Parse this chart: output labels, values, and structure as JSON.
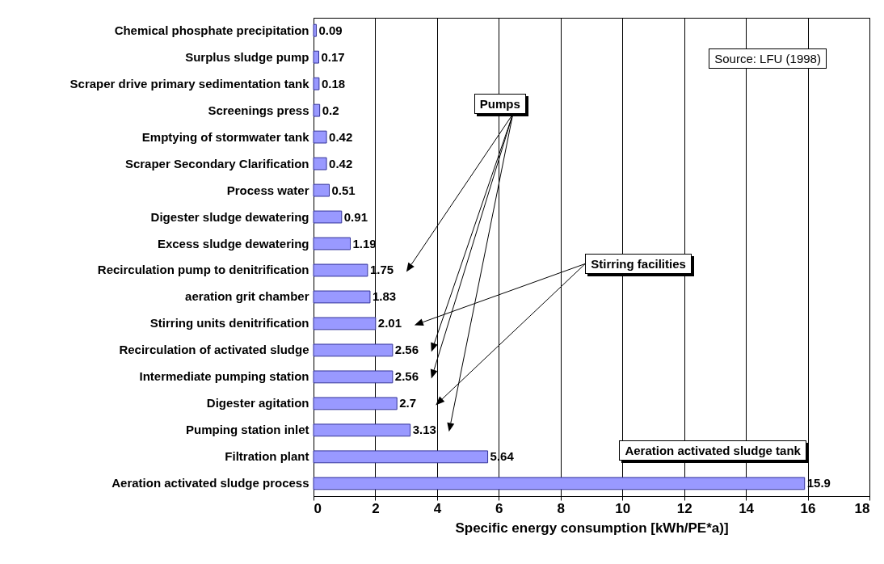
{
  "chart_data": {
    "type": "bar",
    "orientation": "horizontal",
    "xlabel": "Specific energy consumption [kWh/PE*a)]",
    "categories": [
      "Chemical phosphate precipitation",
      "Surplus sludge pump",
      "Scraper drive primary sedimentation tank",
      "Screenings press",
      "Emptying of stormwater tank",
      "Scraper Secondary Clarification",
      "Process water",
      "Digester sludge dewatering",
      "Excess sludge dewatering",
      "Recirculation pump to denitrification",
      "aeration grit chamber",
      "Stirring units denitrification",
      "Recirculation of activated sludge",
      "Intermediate pumping station",
      "Digester agitation",
      "Pumping station inlet",
      "Filtration plant",
      "Aeration activated sludge process"
    ],
    "values": [
      0.09,
      0.17,
      0.18,
      0.2,
      0.42,
      0.42,
      0.51,
      0.91,
      1.19,
      1.75,
      1.83,
      2.01,
      2.56,
      2.56,
      2.7,
      3.13,
      5.64,
      15.9
    ],
    "color": "#9999ff",
    "data_labels": true,
    "xlim": [
      0,
      18
    ],
    "xticks": [
      0,
      2,
      4,
      6,
      8,
      10,
      12,
      14,
      16,
      18
    ],
    "grid": "x",
    "annotations": [
      "Source: LFU (1998)",
      "Pumps",
      "Stirring facilities",
      "Aeration activated sludge tank"
    ]
  }
}
